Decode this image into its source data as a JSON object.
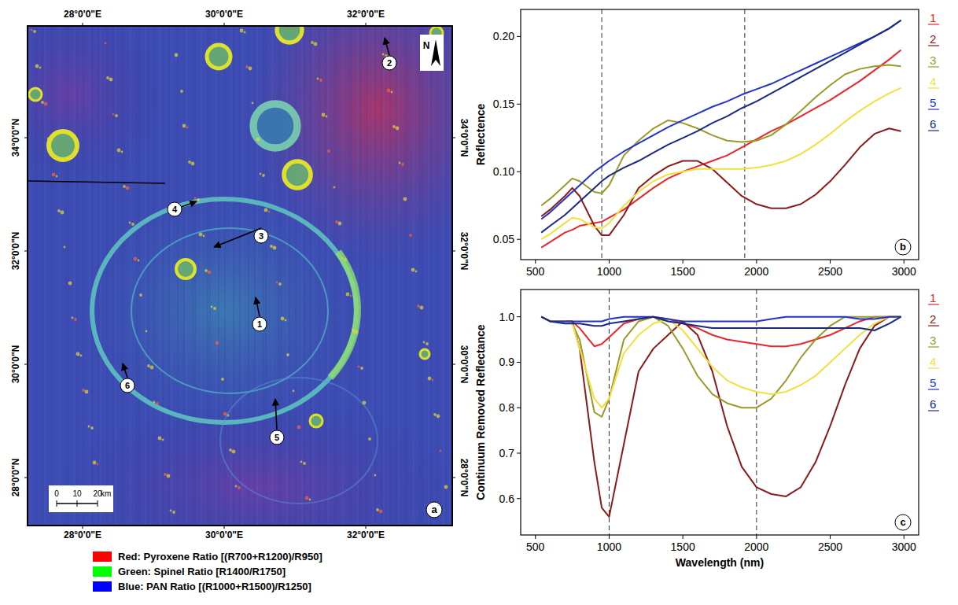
{
  "chart_data": [
    {
      "type": "line",
      "panel_label": "b",
      "y_label": "Reflectence",
      "xlim": [
        400,
        3100
      ],
      "ylim": [
        0.035,
        0.22
      ],
      "xticks": [
        500,
        1000,
        1500,
        2000,
        2500,
        3000
      ],
      "yticks": [
        0.05,
        {
          "value": 0.1,
          "label": "0.10"
        },
        0.15,
        {
          "value": 0.2,
          "label": "0.20"
        }
      ],
      "reference_lines": [
        950,
        1920
      ],
      "grid": false,
      "legend": "right",
      "x": [
        540,
        600,
        700,
        750,
        800,
        900,
        950,
        1000,
        1100,
        1200,
        1300,
        1400,
        1500,
        1600,
        1700,
        1800,
        1900,
        2000,
        2100,
        2200,
        2300,
        2400,
        2500,
        2600,
        2700,
        2800,
        2900,
        2980
      ],
      "series": [
        {
          "name": "1",
          "color": "#e8262b",
          "values": [
            0.044,
            0.048,
            0.055,
            0.057,
            0.06,
            0.062,
            0.063,
            0.066,
            0.072,
            0.08,
            0.088,
            0.095,
            0.1,
            0.104,
            0.108,
            0.112,
            0.118,
            0.124,
            0.13,
            0.135,
            0.141,
            0.147,
            0.153,
            0.16,
            0.167,
            0.175,
            0.183,
            0.19
          ]
        },
        {
          "name": "2",
          "color": "#8b1a1a",
          "values": [
            0.067,
            0.072,
            0.082,
            0.088,
            0.082,
            0.06,
            0.053,
            0.053,
            0.068,
            0.088,
            0.097,
            0.104,
            0.108,
            0.108,
            0.102,
            0.092,
            0.082,
            0.076,
            0.073,
            0.073,
            0.076,
            0.083,
            0.093,
            0.105,
            0.118,
            0.128,
            0.132,
            0.13
          ]
        },
        {
          "name": "3",
          "color": "#9a9a2a",
          "values": [
            0.075,
            0.08,
            0.09,
            0.095,
            0.093,
            0.085,
            0.084,
            0.09,
            0.112,
            0.123,
            0.132,
            0.138,
            0.136,
            0.132,
            0.127,
            0.123,
            0.122,
            0.123,
            0.127,
            0.135,
            0.145,
            0.155,
            0.164,
            0.172,
            0.176,
            0.178,
            0.179,
            0.178
          ]
        },
        {
          "name": "4",
          "color": "#f0e040",
          "values": [
            0.05,
            0.054,
            0.062,
            0.066,
            0.065,
            0.059,
            0.058,
            0.062,
            0.075,
            0.085,
            0.093,
            0.098,
            0.1,
            0.102,
            0.102,
            0.102,
            0.102,
            0.103,
            0.105,
            0.108,
            0.113,
            0.12,
            0.128,
            0.137,
            0.145,
            0.152,
            0.158,
            0.162
          ]
        },
        {
          "name": "5",
          "color": "#2233cc",
          "values": [
            0.065,
            0.07,
            0.08,
            0.085,
            0.09,
            0.1,
            0.104,
            0.108,
            0.115,
            0.121,
            0.127,
            0.133,
            0.138,
            0.143,
            0.148,
            0.152,
            0.157,
            0.161,
            0.165,
            0.17,
            0.175,
            0.18,
            0.185,
            0.19,
            0.195,
            0.2,
            0.206,
            0.212
          ]
        },
        {
          "name": "6",
          "color": "#1a2a80",
          "values": [
            0.055,
            0.06,
            0.068,
            0.073,
            0.078,
            0.088,
            0.093,
            0.097,
            0.103,
            0.108,
            0.114,
            0.12,
            0.125,
            0.13,
            0.136,
            0.141,
            0.147,
            0.152,
            0.158,
            0.164,
            0.17,
            0.176,
            0.182,
            0.188,
            0.194,
            0.2,
            0.206,
            0.212
          ]
        }
      ]
    },
    {
      "type": "line",
      "panel_label": "c",
      "x_label": "Wavelength (nm)",
      "y_label": "Continuum Removed Reflectance",
      "xlim": [
        400,
        3100
      ],
      "ylim": [
        0.52,
        1.06
      ],
      "xticks": [
        500,
        1000,
        1500,
        2000,
        2500,
        3000
      ],
      "yticks": [
        0.6,
        0.7,
        0.8,
        0.9,
        {
          "value": 1,
          "label": "1.0"
        }
      ],
      "reference_lines": [
        1000,
        2000
      ],
      "grid": false,
      "legend": "right",
      "x": [
        540,
        600,
        700,
        750,
        800,
        900,
        950,
        1000,
        1100,
        1200,
        1300,
        1400,
        1500,
        1600,
        1700,
        1800,
        1900,
        2000,
        2100,
        2200,
        2300,
        2400,
        2500,
        2600,
        2700,
        2800,
        2900,
        2980
      ],
      "series": [
        {
          "name": "1",
          "color": "#e8262b",
          "values": [
            1.0,
            0.99,
            0.99,
            0.99,
            0.975,
            0.935,
            0.94,
            0.955,
            0.985,
            0.995,
            1.0,
            0.995,
            0.985,
            0.975,
            0.96,
            0.95,
            0.945,
            0.94,
            0.935,
            0.935,
            0.94,
            0.95,
            0.96,
            0.975,
            0.99,
            1.0,
            1.0,
            1.0
          ]
        },
        {
          "name": "2",
          "color": "#8b1a1a",
          "values": [
            1.0,
            0.99,
            0.99,
            0.99,
            0.93,
            0.68,
            0.58,
            0.56,
            0.72,
            0.88,
            0.93,
            0.96,
            0.99,
            0.96,
            0.88,
            0.76,
            0.67,
            0.625,
            0.61,
            0.605,
            0.625,
            0.68,
            0.76,
            0.85,
            0.93,
            0.98,
            1.0,
            1.0
          ]
        },
        {
          "name": "3",
          "color": "#9a9a2a",
          "values": [
            1.0,
            0.99,
            0.99,
            0.985,
            0.95,
            0.79,
            0.78,
            0.82,
            0.95,
            0.99,
            1.0,
            0.98,
            0.93,
            0.87,
            0.83,
            0.81,
            0.8,
            0.8,
            0.82,
            0.86,
            0.91,
            0.95,
            0.98,
            1.0,
            1.0,
            1.0,
            1.0,
            1.0
          ]
        },
        {
          "name": "4",
          "color": "#f0e040",
          "values": [
            1.0,
            0.99,
            0.99,
            0.985,
            0.93,
            0.82,
            0.8,
            0.82,
            0.92,
            0.96,
            0.985,
            0.995,
            0.97,
            0.93,
            0.89,
            0.86,
            0.845,
            0.835,
            0.83,
            0.835,
            0.85,
            0.87,
            0.9,
            0.93,
            0.96,
            0.985,
            1.0,
            1.0
          ]
        },
        {
          "name": "5",
          "color": "#2233cc",
          "values": [
            1.0,
            0.99,
            0.99,
            0.99,
            0.99,
            0.99,
            0.99,
            0.995,
            1.0,
            1.0,
            1.0,
            0.995,
            0.99,
            0.99,
            0.99,
            0.99,
            0.99,
            0.99,
            0.995,
            1.0,
            1.0,
            1.0,
            1.0,
            1.0,
            0.995,
            0.995,
            1.0,
            1.0
          ]
        },
        {
          "name": "6",
          "color": "#1a2a80",
          "values": [
            1.0,
            0.99,
            0.985,
            0.985,
            0.985,
            0.98,
            0.98,
            0.985,
            0.99,
            0.995,
            1.0,
            0.99,
            0.985,
            0.98,
            0.975,
            0.975,
            0.975,
            0.975,
            0.975,
            0.975,
            0.975,
            0.975,
            0.975,
            0.975,
            0.975,
            0.97,
            0.985,
            1.0
          ]
        }
      ]
    }
  ],
  "map": {
    "panel_label": "a",
    "north": "N",
    "lon_labels": [
      {
        "value": 28,
        "label": "28°0'0\"E"
      },
      {
        "value": 30,
        "label": "30°0'0\"E"
      },
      {
        "value": 32,
        "label": "32°0'0\"E"
      }
    ],
    "lat_labels": [
      {
        "value": 34,
        "label": "34°0'0\"N"
      },
      {
        "value": 32,
        "label": "32°0'0\"N"
      },
      {
        "value": 30,
        "label": "30°0'0\"N"
      },
      {
        "value": 28,
        "label": "28°0'0\"N"
      }
    ],
    "points": [
      "1",
      "2",
      "3",
      "4",
      "5",
      "6"
    ],
    "scale_bar": {
      "ticks": [
        0,
        10,
        20
      ],
      "unit": "km"
    },
    "legend": [
      {
        "color": "#ff0000",
        "label": "Red: Pyroxene Ratio [(R700+R1200)/R950]"
      },
      {
        "color": "#00ff00",
        "label": "Green: Spinel Ratio [R1400/R1750]"
      },
      {
        "color": "#0000ff",
        "label": "Blue: PAN Ratio [(R1000+R1500)/R1250]"
      }
    ]
  }
}
